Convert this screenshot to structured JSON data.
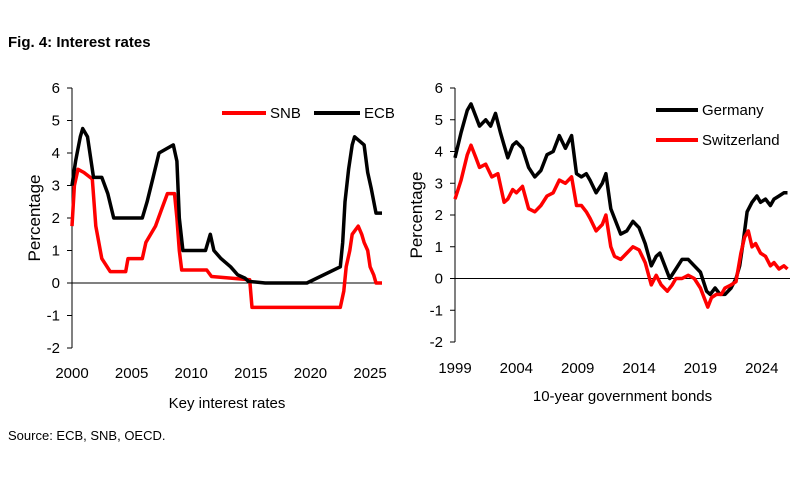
{
  "figure": {
    "title": "Fig. 4: Interest rates",
    "source": "Source: ECB, SNB, OECD."
  },
  "colors": {
    "black": "#000000",
    "red": "#ff0000"
  },
  "chart_data": [
    {
      "type": "line",
      "xlabel": "Key interest rates",
      "ylabel": "Percentage",
      "xlim": [
        2000,
        2026
      ],
      "ylim": [
        -2,
        6
      ],
      "xticks": [
        "2000",
        "2005",
        "2010",
        "2015",
        "2020",
        "2025"
      ],
      "yticks": [
        "6",
        "5",
        "4",
        "3",
        "2",
        "1",
        "0",
        "-1",
        "-2"
      ],
      "legend": "top-right",
      "series": [
        {
          "name": "SNB",
          "color": "#ff0000",
          "x": [
            2000.0,
            2000.2,
            2000.5,
            2001.0,
            2001.7,
            2002.0,
            2002.5,
            2003.2,
            2004.5,
            2004.7,
            2005.9,
            2006.2,
            2007.0,
            2007.5,
            2008.0,
            2008.6,
            2008.8,
            2009.0,
            2009.2,
            2011.3,
            2011.7,
            2014.9,
            2015.1,
            2022.5,
            2022.8,
            2023.0,
            2023.3,
            2023.5,
            2024.0,
            2024.3,
            2024.5,
            2024.8,
            2025.0,
            2025.3,
            2025.5,
            2026.0
          ],
          "y": [
            1.75,
            3.0,
            3.5,
            3.4,
            3.2,
            1.75,
            0.75,
            0.35,
            0.35,
            0.75,
            0.75,
            1.25,
            1.75,
            2.25,
            2.75,
            2.75,
            2.0,
            1.0,
            0.4,
            0.4,
            0.2,
            0.1,
            -0.75,
            -0.75,
            -0.25,
            0.5,
            1.0,
            1.5,
            1.75,
            1.5,
            1.25,
            1.0,
            0.5,
            0.25,
            0.0,
            0.0
          ]
        },
        {
          "name": "ECB",
          "color": "#000000",
          "x": [
            2000.0,
            2000.3,
            2000.7,
            2000.9,
            2001.3,
            2001.8,
            2002.5,
            2003.0,
            2003.5,
            2005.9,
            2006.3,
            2006.8,
            2007.3,
            2008.5,
            2008.8,
            2009.0,
            2009.3,
            2011.2,
            2011.6,
            2011.9,
            2012.5,
            2013.3,
            2013.9,
            2014.5,
            2014.8,
            2016.2,
            2019.7,
            2022.5,
            2022.7,
            2022.9,
            2023.2,
            2023.5,
            2023.7,
            2024.5,
            2024.8,
            2025.1,
            2025.5,
            2026.0
          ],
          "y": [
            3.0,
            3.75,
            4.5,
            4.75,
            4.5,
            3.25,
            3.25,
            2.75,
            2.0,
            2.0,
            2.5,
            3.25,
            4.0,
            4.25,
            3.75,
            2.0,
            1.0,
            1.0,
            1.5,
            1.0,
            0.75,
            0.5,
            0.25,
            0.15,
            0.05,
            0.0,
            0.0,
            0.5,
            1.25,
            2.5,
            3.5,
            4.25,
            4.5,
            4.25,
            3.4,
            2.9,
            2.15,
            2.15
          ]
        }
      ]
    },
    {
      "type": "line",
      "xlabel": "10-year government bonds",
      "ylabel": "Percentage",
      "xlim": [
        1999,
        2026.3
      ],
      "ylim": [
        -2,
        6
      ],
      "xticks": [
        "1999",
        "2004",
        "2009",
        "2014",
        "2019",
        "2024"
      ],
      "yticks": [
        "6",
        "5",
        "4",
        "3",
        "2",
        "1",
        "0",
        "-1",
        "-2"
      ],
      "legend": "top-right",
      "series": [
        {
          "name": "Germany",
          "color": "#000000",
          "x": [
            1999.0,
            1999.5,
            2000.0,
            2000.3,
            2000.7,
            2001.0,
            2001.5,
            2001.9,
            2002.3,
            2002.7,
            2003.0,
            2003.3,
            2003.7,
            2004.0,
            2004.5,
            2005.0,
            2005.5,
            2006.0,
            2006.5,
            2007.0,
            2007.5,
            2008.0,
            2008.5,
            2008.9,
            2009.3,
            2009.7,
            2010.0,
            2010.5,
            2011.0,
            2011.3,
            2011.7,
            2012.0,
            2012.5,
            2013.0,
            2013.5,
            2014.0,
            2014.5,
            2015.0,
            2015.4,
            2015.7,
            2016.0,
            2016.5,
            2017.0,
            2017.5,
            2018.0,
            2018.5,
            2019.0,
            2019.5,
            2019.8,
            2020.2,
            2020.6,
            2021.0,
            2021.5,
            2021.9,
            2022.2,
            2022.5,
            2022.8,
            2023.2,
            2023.6,
            2023.9,
            2024.3,
            2024.7,
            2025.0,
            2025.4,
            2025.8,
            2026.1
          ],
          "y": [
            3.8,
            4.6,
            5.3,
            5.5,
            5.1,
            4.8,
            5.0,
            4.8,
            5.2,
            4.6,
            4.2,
            3.8,
            4.2,
            4.3,
            4.1,
            3.5,
            3.2,
            3.4,
            3.9,
            4.0,
            4.5,
            4.1,
            4.5,
            3.3,
            3.2,
            3.3,
            3.1,
            2.7,
            3.0,
            3.3,
            2.2,
            1.9,
            1.4,
            1.5,
            1.8,
            1.6,
            1.1,
            0.4,
            0.7,
            0.8,
            0.5,
            0.0,
            0.3,
            0.6,
            0.6,
            0.4,
            0.2,
            -0.4,
            -0.5,
            -0.3,
            -0.5,
            -0.5,
            -0.3,
            0.0,
            0.4,
            1.2,
            2.1,
            2.4,
            2.6,
            2.4,
            2.5,
            2.3,
            2.5,
            2.6,
            2.7,
            2.7
          ]
        },
        {
          "name": "Switzerland",
          "color": "#ff0000",
          "x": [
            1999.0,
            1999.5,
            2000.0,
            2000.3,
            2000.7,
            2001.0,
            2001.5,
            2002.0,
            2002.5,
            2003.0,
            2003.3,
            2003.7,
            2004.0,
            2004.5,
            2005.0,
            2005.5,
            2006.0,
            2006.5,
            2007.0,
            2007.5,
            2008.0,
            2008.5,
            2008.9,
            2009.3,
            2009.7,
            2010.0,
            2010.5,
            2011.0,
            2011.3,
            2011.7,
            2012.0,
            2012.5,
            2013.0,
            2013.5,
            2014.0,
            2014.5,
            2015.0,
            2015.4,
            2015.8,
            2016.3,
            2016.7,
            2017.0,
            2017.5,
            2018.0,
            2018.5,
            2019.0,
            2019.3,
            2019.6,
            2019.9,
            2020.3,
            2020.7,
            2021.0,
            2021.5,
            2021.9,
            2022.3,
            2022.6,
            2022.9,
            2023.2,
            2023.5,
            2023.9,
            2024.3,
            2024.7,
            2025.0,
            2025.4,
            2025.8,
            2026.1
          ],
          "y": [
            2.5,
            3.1,
            3.9,
            4.2,
            3.8,
            3.5,
            3.6,
            3.2,
            3.3,
            2.4,
            2.5,
            2.8,
            2.7,
            2.9,
            2.2,
            2.1,
            2.3,
            2.6,
            2.7,
            3.1,
            3.0,
            3.2,
            2.3,
            2.3,
            2.1,
            1.9,
            1.5,
            1.7,
            2.0,
            1.0,
            0.7,
            0.6,
            0.8,
            1.0,
            0.9,
            0.5,
            -0.2,
            0.1,
            -0.2,
            -0.4,
            -0.2,
            0.0,
            0.0,
            0.1,
            0.0,
            -0.3,
            -0.6,
            -0.9,
            -0.6,
            -0.5,
            -0.5,
            -0.3,
            -0.2,
            -0.1,
            0.8,
            1.3,
            1.5,
            1.0,
            1.1,
            0.8,
            0.7,
            0.4,
            0.5,
            0.3,
            0.4,
            0.3
          ]
        }
      ]
    }
  ]
}
